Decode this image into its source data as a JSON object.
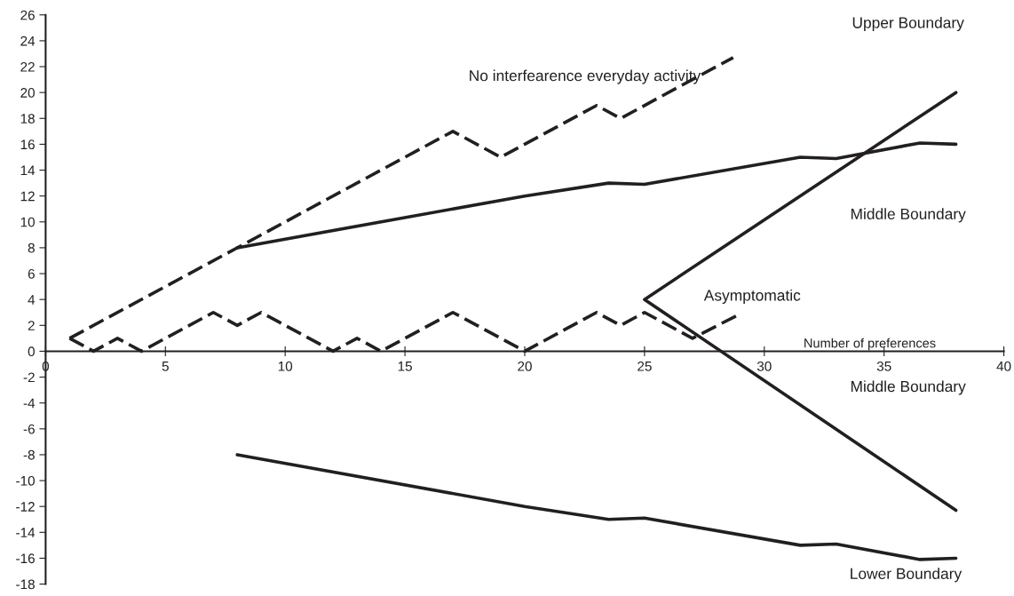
{
  "chart_data": {
    "type": "line",
    "xlabel": "Number of preferences",
    "xlim": [
      0,
      40
    ],
    "ylim": [
      -18,
      26
    ],
    "xticks": [
      {
        "value": 0,
        "label": "0"
      },
      5,
      10,
      15,
      20,
      25,
      30,
      35,
      40
    ],
    "yticks": [
      -18,
      -16,
      -14,
      -12,
      -10,
      -8,
      -6,
      -4,
      -2,
      0,
      2,
      4,
      6,
      8,
      10,
      12,
      14,
      16,
      18,
      20,
      22,
      24,
      26
    ],
    "grid": false,
    "legend": false,
    "marker": "none",
    "series": [
      {
        "color": "#231f20",
        "line_style": "dashed",
        "x": [
          1,
          17,
          19,
          23,
          24,
          28.7
        ],
        "values": [
          1,
          17,
          15,
          19,
          18,
          22.7
        ]
      },
      {
        "color": "#231f20",
        "line_style": "solid",
        "x": [
          8,
          20,
          23.5,
          25,
          31.5,
          33,
          36.5,
          38
        ],
        "values": [
          8,
          12,
          13,
          12.9,
          15,
          14.9,
          16.1,
          16
        ]
      },
      {
        "color": "#231f20",
        "line_style": "solid",
        "x": [
          8,
          20,
          23.5,
          25,
          31.5,
          33,
          36.5,
          38
        ],
        "values": [
          -8,
          -12,
          -13,
          -12.9,
          -15,
          -14.9,
          -16.1,
          -16
        ]
      },
      {
        "color": "#231f20",
        "line_style": "dashed",
        "x": [
          1,
          2,
          3,
          4,
          7,
          8,
          9,
          12,
          13,
          14,
          17,
          20,
          23,
          24,
          25,
          27,
          28.9
        ],
        "values": [
          1,
          0,
          1,
          0,
          3,
          2,
          3,
          0,
          1,
          0,
          3,
          0,
          3,
          2,
          3,
          1,
          2.8
        ]
      },
      {
        "color": "#231f20",
        "line_style": "solid",
        "x": [
          38,
          25,
          38
        ],
        "values": [
          20,
          4,
          -12.3
        ]
      }
    ],
    "annotations": [
      "Upper Boundary",
      "No interfearence everyday activity",
      "Middle Boundary",
      "Asymptomatic",
      "Middle Boundary",
      "Lower Boundary"
    ]
  }
}
